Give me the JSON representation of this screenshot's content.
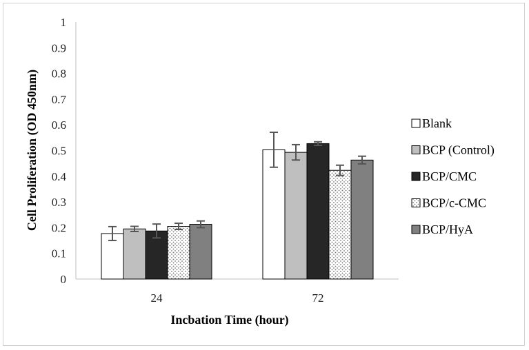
{
  "chart_data": {
    "type": "bar",
    "title": "",
    "xlabel": "Incbation Time (hour)",
    "ylabel": "Cell Proliferation (OD 450nm)",
    "ylim": [
      0,
      1
    ],
    "yticks": [
      "0",
      "0.1",
      "0.2",
      "0.3",
      "0.4",
      "0.5",
      "0.6",
      "0.7",
      "0.8",
      "0.9",
      "1"
    ],
    "categories": [
      "24",
      "72"
    ],
    "legend_position": "right",
    "grid": false,
    "series": [
      {
        "name": "Blank",
        "values": [
          0.177,
          0.503
        ],
        "errors": [
          0.027,
          0.068
        ],
        "fill": "#ffffff",
        "pattern": "solid"
      },
      {
        "name": "BCP (Control)",
        "values": [
          0.195,
          0.493
        ],
        "errors": [
          0.01,
          0.03
        ],
        "fill": "#bfbfbf",
        "pattern": "solid"
      },
      {
        "name": "BCP/CMC",
        "values": [
          0.187,
          0.527
        ],
        "errors": [
          0.027,
          0.007
        ],
        "fill": "#262626",
        "pattern": "solid"
      },
      {
        "name": "BCP/c-CMC",
        "values": [
          0.205,
          0.423
        ],
        "errors": [
          0.012,
          0.02
        ],
        "fill": "#ffffff",
        "pattern": "dots"
      },
      {
        "name": "BCP/HyA",
        "values": [
          0.213,
          0.463
        ],
        "errors": [
          0.013,
          0.015
        ],
        "fill": "#808080",
        "pattern": "solid"
      }
    ]
  }
}
